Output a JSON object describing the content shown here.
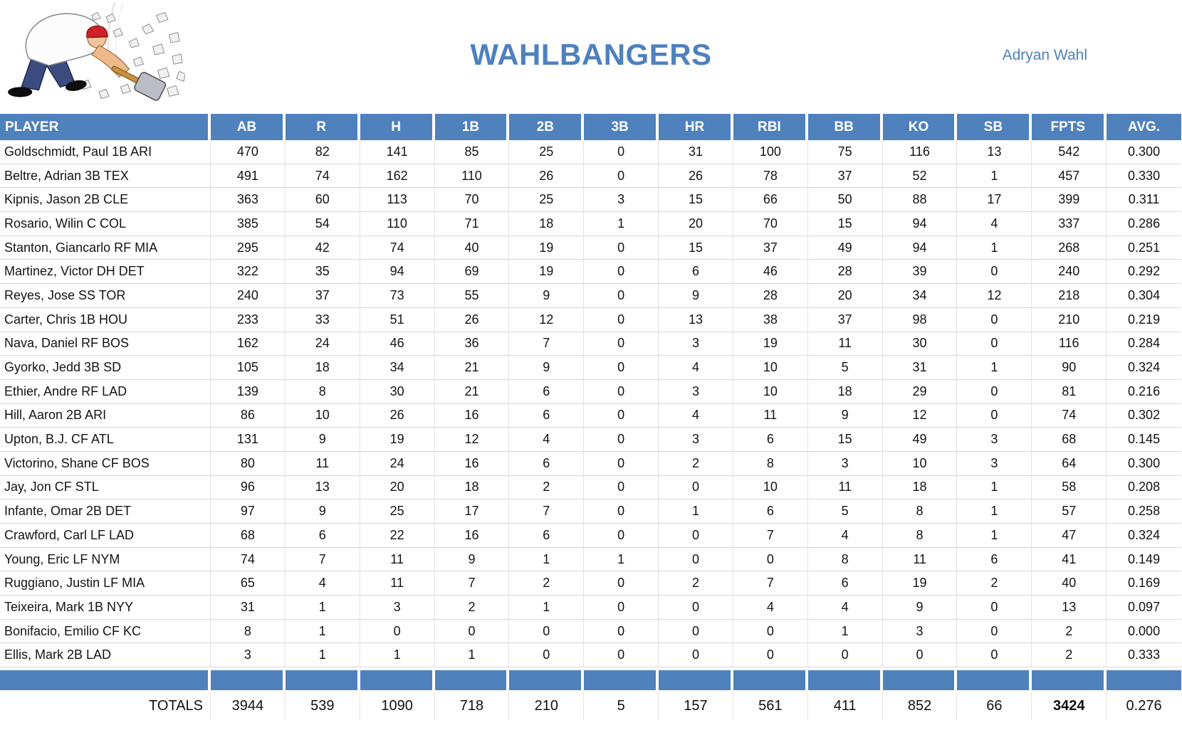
{
  "page": {
    "title": "WAHLBANGERS",
    "owner": "Adryan Wahl",
    "logo": "hammer-smashing-rocks-cartoon"
  },
  "colors": {
    "accent_blue": "#4F81BD",
    "title_blue": "#4E81BD",
    "grid_line": "#D9D9D9"
  },
  "table": {
    "columns": [
      "PLAYER",
      "AB",
      "R",
      "H",
      "1B",
      "2B",
      "3B",
      "HR",
      "RBI",
      "BB",
      "KO",
      "SB",
      "FPTS",
      "AVG."
    ],
    "players": [
      [
        "Goldschmidt, Paul 1B ARI",
        "470",
        "82",
        "141",
        "85",
        "25",
        "0",
        "31",
        "100",
        "75",
        "116",
        "13",
        "542",
        "0.300"
      ],
      [
        "Beltre, Adrian 3B TEX",
        "491",
        "74",
        "162",
        "110",
        "26",
        "0",
        "26",
        "78",
        "37",
        "52",
        "1",
        "457",
        "0.330"
      ],
      [
        "Kipnis, Jason 2B CLE",
        "363",
        "60",
        "113",
        "70",
        "25",
        "3",
        "15",
        "66",
        "50",
        "88",
        "17",
        "399",
        "0.311"
      ],
      [
        "Rosario, Wilin C COL",
        "385",
        "54",
        "110",
        "71",
        "18",
        "1",
        "20",
        "70",
        "15",
        "94",
        "4",
        "337",
        "0.286"
      ],
      [
        "Stanton, Giancarlo RF MIA",
        "295",
        "42",
        "74",
        "40",
        "19",
        "0",
        "15",
        "37",
        "49",
        "94",
        "1",
        "268",
        "0.251"
      ],
      [
        "Martinez, Victor DH DET",
        "322",
        "35",
        "94",
        "69",
        "19",
        "0",
        "6",
        "46",
        "28",
        "39",
        "0",
        "240",
        "0.292"
      ],
      [
        "Reyes, Jose SS TOR",
        "240",
        "37",
        "73",
        "55",
        "9",
        "0",
        "9",
        "28",
        "20",
        "34",
        "12",
        "218",
        "0.304"
      ],
      [
        "Carter, Chris 1B HOU",
        "233",
        "33",
        "51",
        "26",
        "12",
        "0",
        "13",
        "38",
        "37",
        "98",
        "0",
        "210",
        "0.219"
      ],
      [
        "Nava, Daniel RF BOS",
        "162",
        "24",
        "46",
        "36",
        "7",
        "0",
        "3",
        "19",
        "11",
        "30",
        "0",
        "116",
        "0.284"
      ],
      [
        "Gyorko, Jedd 3B SD",
        "105",
        "18",
        "34",
        "21",
        "9",
        "0",
        "4",
        "10",
        "5",
        "31",
        "1",
        "90",
        "0.324"
      ],
      [
        "Ethier, Andre RF LAD",
        "139",
        "8",
        "30",
        "21",
        "6",
        "0",
        "3",
        "10",
        "18",
        "29",
        "0",
        "81",
        "0.216"
      ],
      [
        "Hill, Aaron 2B ARI",
        "86",
        "10",
        "26",
        "16",
        "6",
        "0",
        "4",
        "11",
        "9",
        "12",
        "0",
        "74",
        "0.302"
      ],
      [
        "Upton, B.J. CF ATL",
        "131",
        "9",
        "19",
        "12",
        "4",
        "0",
        "3",
        "6",
        "15",
        "49",
        "3",
        "68",
        "0.145"
      ],
      [
        "Victorino, Shane CF BOS",
        "80",
        "11",
        "24",
        "16",
        "6",
        "0",
        "2",
        "8",
        "3",
        "10",
        "3",
        "64",
        "0.300"
      ],
      [
        "Jay, Jon CF STL",
        "96",
        "13",
        "20",
        "18",
        "2",
        "0",
        "0",
        "10",
        "11",
        "18",
        "1",
        "58",
        "0.208"
      ],
      [
        "Infante, Omar 2B DET",
        "97",
        "9",
        "25",
        "17",
        "7",
        "0",
        "1",
        "6",
        "5",
        "8",
        "1",
        "57",
        "0.258"
      ],
      [
        "Crawford, Carl LF LAD",
        "68",
        "6",
        "22",
        "16",
        "6",
        "0",
        "0",
        "7",
        "4",
        "8",
        "1",
        "47",
        "0.324"
      ],
      [
        "Young, Eric LF NYM",
        "74",
        "7",
        "11",
        "9",
        "1",
        "1",
        "0",
        "0",
        "8",
        "11",
        "6",
        "41",
        "0.149"
      ],
      [
        "Ruggiano, Justin LF MIA",
        "65",
        "4",
        "11",
        "7",
        "2",
        "0",
        "2",
        "7",
        "6",
        "19",
        "2",
        "40",
        "0.169"
      ],
      [
        "Teixeira, Mark 1B NYY",
        "31",
        "1",
        "3",
        "2",
        "1",
        "0",
        "0",
        "4",
        "4",
        "9",
        "0",
        "13",
        "0.097"
      ],
      [
        "Bonifacio, Emilio CF KC",
        "8",
        "1",
        "0",
        "0",
        "0",
        "0",
        "0",
        "0",
        "1",
        "3",
        "0",
        "2",
        "0.000"
      ],
      [
        "Ellis, Mark 2B LAD",
        "3",
        "1",
        "1",
        "1",
        "0",
        "0",
        "0",
        "0",
        "0",
        "0",
        "0",
        "2",
        "0.333"
      ]
    ],
    "totals_label": "TOTALS",
    "totals": [
      "3944",
      "539",
      "1090",
      "718",
      "210",
      "5",
      "157",
      "561",
      "411",
      "852",
      "66",
      "3424",
      "0.276"
    ]
  }
}
